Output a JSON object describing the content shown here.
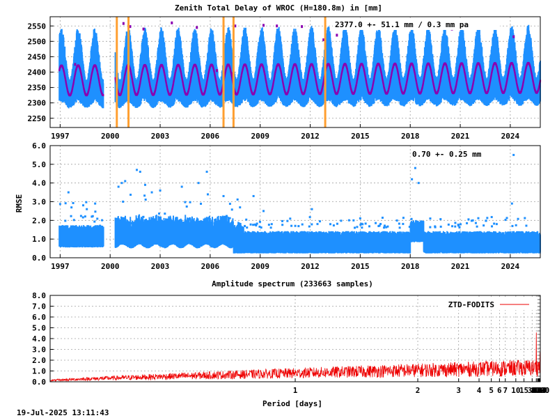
{
  "timestamp": "19-Jul-2025 13:11:43",
  "colors": {
    "ztd": "#1e90ff",
    "fit": "#8b00b0",
    "breaks": "#ff9f30",
    "rmse": "#1e90ff",
    "spectrum": "#ee0000"
  },
  "chart_data": [
    {
      "type": "scatter",
      "title": "Zenith Total Delay of WROC (H=180.8m) in [mm]",
      "annotation": "2377.0 +-  51.1 mm /  0.3 mm pa",
      "xlim": [
        1996.4,
        2025.8
      ],
      "ylim": [
        2220,
        2580
      ],
      "x_ticks": [
        1997,
        2000,
        2003,
        2006,
        2009,
        2012,
        2015,
        2018,
        2021,
        2024
      ],
      "y_ticks": [
        2250,
        2300,
        2350,
        2400,
        2450,
        2500,
        2550
      ],
      "mean": 2377.0,
      "amplitude": 51.1,
      "trend_mm_per_year": 0.3,
      "data_gap": [
        1999.6,
        2000.3
      ],
      "break_epochs": [
        2000.4,
        2001.1,
        2006.8,
        2007.4,
        2012.9
      ]
    },
    {
      "type": "scatter",
      "title": "",
      "annotation": "0.70 +-  0.25 mm",
      "ylabel": "RMSE",
      "xlim": [
        1996.4,
        2025.8
      ],
      "ylim": [
        0,
        6
      ],
      "x_ticks": [
        1997,
        2000,
        2003,
        2006,
        2009,
        2012,
        2015,
        2018,
        2021,
        2024
      ],
      "y_ticks": [
        0.0,
        1.0,
        2.0,
        3.0,
        4.0,
        5.0,
        6.0
      ],
      "mean": 0.7,
      "std": 0.25,
      "data_gap": [
        1999.6,
        2000.3
      ],
      "outliers": [
        {
          "x": 1997.5,
          "y": 3.5
        },
        {
          "x": 1998.6,
          "y": 2.6
        },
        {
          "x": 1998.9,
          "y": 2.2
        },
        {
          "x": 1999.1,
          "y": 2.9
        },
        {
          "x": 2000.5,
          "y": 3.8
        },
        {
          "x": 2000.7,
          "y": 4.0
        },
        {
          "x": 2000.9,
          "y": 4.1
        },
        {
          "x": 2001.6,
          "y": 4.7
        },
        {
          "x": 2001.8,
          "y": 4.6
        },
        {
          "x": 2002.1,
          "y": 3.9
        },
        {
          "x": 2002.5,
          "y": 3.5
        },
        {
          "x": 2003.0,
          "y": 3.6
        },
        {
          "x": 2004.3,
          "y": 3.8
        },
        {
          "x": 2005.3,
          "y": 4.0
        },
        {
          "x": 2005.8,
          "y": 4.6
        },
        {
          "x": 2006.8,
          "y": 3.3
        },
        {
          "x": 2008.6,
          "y": 3.3
        },
        {
          "x": 2009.2,
          "y": 2.5
        },
        {
          "x": 2012.1,
          "y": 2.6
        },
        {
          "x": 2014.6,
          "y": 2.0
        },
        {
          "x": 2018.3,
          "y": 4.8
        },
        {
          "x": 2018.1,
          "y": 4.2
        },
        {
          "x": 2018.5,
          "y": 4.0
        },
        {
          "x": 2019.2,
          "y": 2.1
        },
        {
          "x": 2024.1,
          "y": 2.9
        },
        {
          "x": 2024.2,
          "y": 5.5
        }
      ]
    },
    {
      "type": "line",
      "title": "Amplitude spectrum (233663 samples)",
      "xlabel": "Period [days]",
      "legend": "ZTD-FODITS",
      "legend_position": "top-right",
      "x_scale": "reciprocal",
      "xlim": [
        0.5,
        8760
      ],
      "ylim": [
        0,
        8
      ],
      "x_ticks": [
        1,
        2,
        3,
        4,
        5,
        6,
        7,
        10,
        15,
        30,
        61,
        91,
        122,
        183,
        365,
        730,
        2190,
        4380,
        8760
      ],
      "y_ticks": [
        0.0,
        1.0,
        2.0,
        3.0,
        4.0,
        5.0,
        6.0,
        7.0,
        8.0
      ],
      "peaks": [
        {
          "period": 182,
          "amplitude": 7.4
        },
        {
          "period": 170,
          "amplitude": 5.5
        },
        {
          "period": 61,
          "amplitude": 3.4
        },
        {
          "period": 120,
          "amplitude": 2.9
        },
        {
          "period": 240,
          "amplitude": 2.5
        },
        {
          "period": 350,
          "amplitude": 2.0
        },
        {
          "period": 2000,
          "amplitude": 2.1
        },
        {
          "period": 4300,
          "amplitude": 1.6
        },
        {
          "period": 730,
          "amplitude": 1.5
        }
      ]
    }
  ]
}
